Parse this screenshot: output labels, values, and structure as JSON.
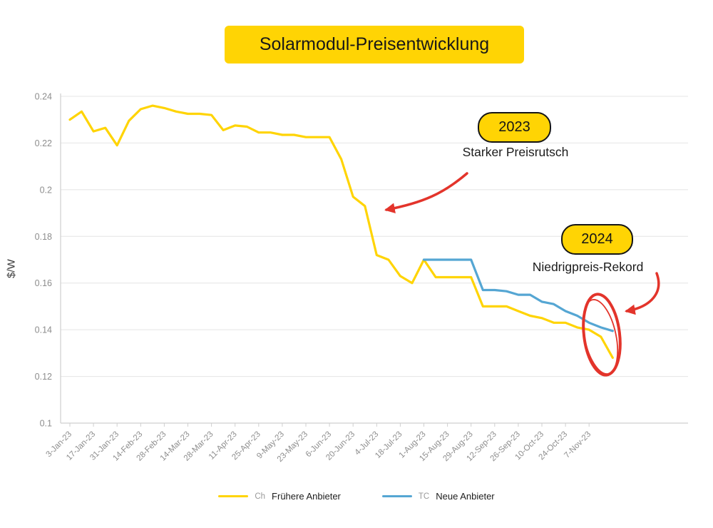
{
  "title": "Solarmodul-Preisentwicklung",
  "y_axis_label": "$/W",
  "annotations": {
    "badge_2023": "2023",
    "text_2023": "Starker Preisrutsch",
    "badge_2024": "2024",
    "text_2024": "Niedrigpreis-Rekord"
  },
  "legend": {
    "series1_key": "Ch",
    "series1_label": "Frühere Anbieter",
    "series2_key": "TC",
    "series2_label": "Neue Anbieter"
  },
  "colors": {
    "accent_yellow": "#FFD404",
    "series_yellow": "#FFD404",
    "series_blue": "#55A6D3",
    "annotation_red": "#E3342B",
    "grid": "#E4E4E4",
    "tick_text": "#8D8D8D"
  },
  "chart_data": {
    "type": "line",
    "title": "Solarmodul-Preisentwicklung",
    "xlabel": "",
    "ylabel": "$/W",
    "ylim": [
      0.1,
      0.24
    ],
    "grid": true,
    "legend_position": "bottom",
    "yticks": [
      0.24,
      0.22,
      0.2,
      0.18,
      0.16,
      0.14,
      0.12,
      0.1
    ],
    "ytick_labels": [
      "0.24",
      "0.22",
      "0.2",
      "0.18",
      "0.16",
      "0.14",
      "0.12",
      "0.1"
    ],
    "x_tick_labels": [
      "3-Jan-23",
      "17-Jan-23",
      "31-Jan-23",
      "14-Feb-23",
      "28-Feb-23",
      "14-Mar-23",
      "28-Mar-23",
      "11-Apr-23",
      "25-Apr-23",
      "9-May-23",
      "23-May-23",
      "6-Jun-23",
      "20-Jun-23",
      "4-Jul-23",
      "18-Jul-23",
      "1-Aug-23",
      "15-Aug-23",
      "29-Aug-23",
      "12-Sep-23",
      "26-Sep-23",
      "10-Oct-23",
      "24-Oct-23",
      "7-Nov-23"
    ],
    "x_tick_interval_weeks": 2,
    "x_count": 47,
    "series": [
      {
        "key": "Ch",
        "name": "Frühere Anbieter",
        "color": "#FFD404",
        "x": [
          0,
          1,
          2,
          3,
          4,
          5,
          6,
          7,
          8,
          9,
          10,
          11,
          12,
          13,
          14,
          15,
          16,
          17,
          18,
          19,
          20,
          21,
          22,
          23,
          24,
          25,
          26,
          27,
          28,
          29,
          30,
          31,
          32,
          33,
          34,
          35,
          36,
          37,
          38,
          39,
          40,
          41,
          42,
          43,
          44,
          45,
          46
        ],
        "values": [
          0.23,
          0.2335,
          0.225,
          0.2265,
          0.219,
          0.2295,
          0.2345,
          0.236,
          0.235,
          0.2335,
          0.2325,
          0.2325,
          0.232,
          0.2255,
          0.2275,
          0.227,
          0.2245,
          0.2245,
          0.2235,
          0.2235,
          0.2225,
          0.2225,
          0.2225,
          0.213,
          0.197,
          0.193,
          0.172,
          0.17,
          0.163,
          0.16,
          0.17,
          0.1625,
          0.1625,
          0.1625,
          0.1625,
          0.15,
          0.15,
          0.15,
          0.148,
          0.146,
          0.145,
          0.143,
          0.143,
          0.141,
          0.14,
          0.137,
          0.128
        ]
      },
      {
        "key": "TC",
        "name": "Neue Anbieter",
        "color": "#55A6D3",
        "x": [
          30,
          31,
          32,
          33,
          34,
          35,
          36,
          37,
          38,
          39,
          40,
          41,
          42,
          43,
          44,
          45,
          46
        ],
        "values": [
          0.17,
          0.17,
          0.17,
          0.17,
          0.17,
          0.157,
          0.157,
          0.1565,
          0.155,
          0.155,
          0.152,
          0.151,
          0.148,
          0.146,
          0.143,
          0.141,
          0.1395
        ]
      }
    ],
    "annotations": [
      {
        "badge": "2023",
        "text": "Starker Preisrutsch",
        "points_to": "steep price drop mid-2023"
      },
      {
        "badge": "2024",
        "text": "Niedrigpreis-Rekord",
        "points_to": "record low price circled at end of series"
      }
    ]
  }
}
